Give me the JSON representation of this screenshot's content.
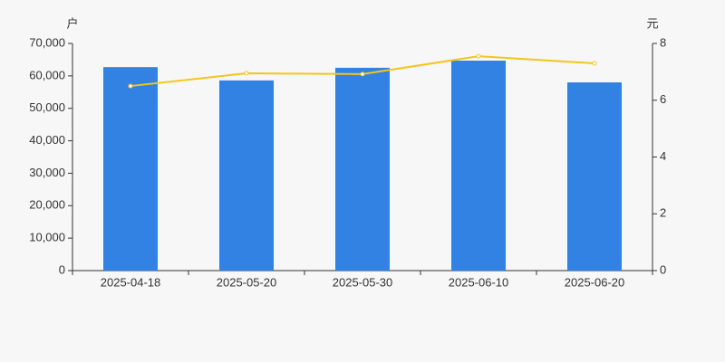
{
  "chart_data": {
    "type": "bar",
    "y_label": "户",
    "y2_label": "元",
    "categories": [
      "2025-04-18",
      "2025-05-20",
      "2025-05-30",
      "2025-06-10",
      "2025-06-20"
    ],
    "series": [
      {
        "type": "bar",
        "color": "#3282e3",
        "values": [
          62700,
          58600,
          62500,
          64700,
          58000
        ]
      },
      {
        "type": "line",
        "axis": "y2",
        "color": "#f5c518",
        "values": [
          6.5,
          6.95,
          6.92,
          7.55,
          7.3
        ]
      }
    ],
    "ylim": [
      0,
      70000
    ],
    "yticks": [
      0,
      {
        "value": 10000,
        "label": "10,000"
      },
      {
        "value": 20000,
        "label": "20,000"
      },
      {
        "value": 30000,
        "label": "30,000"
      },
      {
        "value": 40000,
        "label": "40,000"
      },
      {
        "value": 50000,
        "label": "50,000"
      },
      {
        "value": 60000,
        "label": "60,000"
      },
      {
        "value": 70000,
        "label": "70,000"
      }
    ],
    "y2lim": [
      0,
      8
    ],
    "y2ticks": [
      0,
      2,
      4,
      6,
      8
    ]
  }
}
